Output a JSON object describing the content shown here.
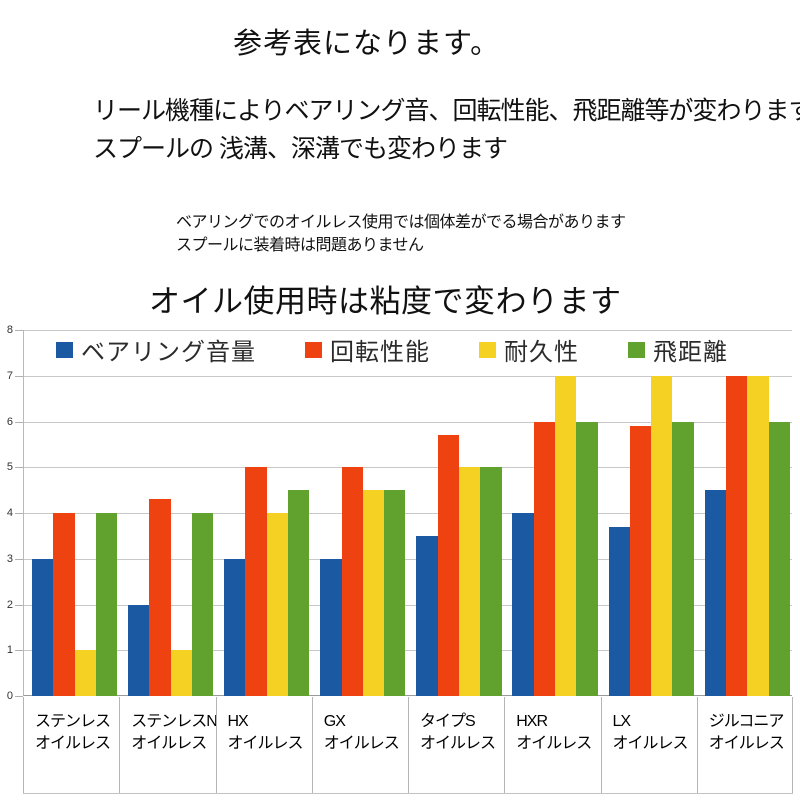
{
  "header": {
    "title": "参考表になります。",
    "description_line1": "リール機種によりベアリング音、回転性能、飛距離等が変わります。",
    "description_line2": "スプールの 浅溝、深溝でも変わります",
    "note_line1": "ベアリングでのオイルレス使用では個体差がでる場合があります",
    "note_line2": "スプールに装着時は問題ありません",
    "subtitle": "オイル使用時は粘度で変わります"
  },
  "chart_data": {
    "type": "bar",
    "title": "",
    "xlabel": "",
    "ylabel": "",
    "ylim": [
      0,
      8
    ],
    "yticks": [
      0,
      1,
      2,
      3,
      4,
      5,
      6,
      7,
      8
    ],
    "grid": true,
    "legend_position": "top",
    "categories": [
      {
        "line1": "ステンレス",
        "line2": "オイルレス"
      },
      {
        "line1": "ステンレスN",
        "line2": "オイルレス"
      },
      {
        "line1": "HX",
        "line2": "オイルレス"
      },
      {
        "line1": "GX",
        "line2": "オイルレス"
      },
      {
        "line1": "タイプS",
        "line2": "オイルレス"
      },
      {
        "line1": "HXR",
        "line2": "オイルレス"
      },
      {
        "line1": "LX",
        "line2": "オイルレス"
      },
      {
        "line1": "ジルコニア",
        "line2": "オイルレス"
      }
    ],
    "series": [
      {
        "name": "ベアリング音量",
        "color": "#1b59a2",
        "values": [
          3,
          2,
          3,
          3,
          3.5,
          4,
          3.7,
          4.5
        ]
      },
      {
        "name": "回転性能",
        "color": "#ee4310",
        "values": [
          4,
          4.3,
          5,
          5,
          5.7,
          6,
          5.9,
          7
        ]
      },
      {
        "name": "耐久性",
        "color": "#f4d122",
        "values": [
          1,
          1,
          4,
          4.5,
          5,
          7,
          7,
          7
        ]
      },
      {
        "name": "飛距離",
        "color": "#60a22d",
        "values": [
          4,
          4,
          4.5,
          4.5,
          5,
          6,
          6,
          6
        ]
      }
    ],
    "colors": {
      "grid": "#c9c9c9",
      "axis": "#9a9a9a",
      "tick_label": "#333333",
      "legend_text": "#2b2b2b"
    }
  }
}
